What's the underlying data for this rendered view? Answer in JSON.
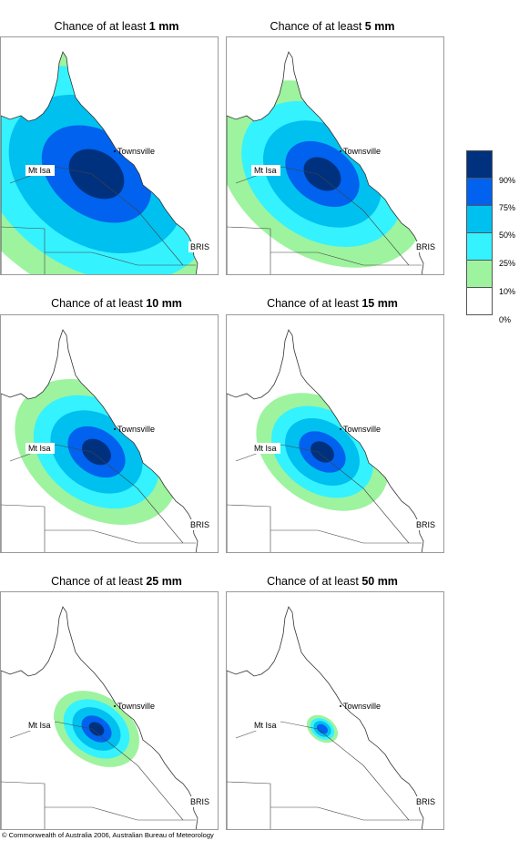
{
  "title_prefix": "Chance of at least",
  "panels": [
    {
      "id": "p1",
      "amount": "1 mm",
      "ring": 2.0
    },
    {
      "id": "p5",
      "amount": "5 mm",
      "ring": 1.35
    },
    {
      "id": "p10",
      "amount": "10 mm",
      "ring": 1.05
    },
    {
      "id": "p15",
      "amount": "15 mm",
      "ring": 0.85
    },
    {
      "id": "p25",
      "amount": "25 mm",
      "ring": 0.55
    },
    {
      "id": "p50",
      "amount": "50 mm",
      "ring": 0.2
    }
  ],
  "places": {
    "townsville": "Townsville",
    "mt_isa": "Mt Isa",
    "brisbane": "BRIS"
  },
  "legend": {
    "colors": [
      "#00317f",
      "#0062ee",
      "#00c0f0",
      "#35f2ff",
      "#9ef39f",
      "#ffffff"
    ],
    "labels": [
      "90%",
      "75%",
      "50%",
      "25%",
      "10%",
      "0%"
    ]
  },
  "copyright": "© Commonwealth of Australia 2006, Australian Bureau of Meteorology"
}
